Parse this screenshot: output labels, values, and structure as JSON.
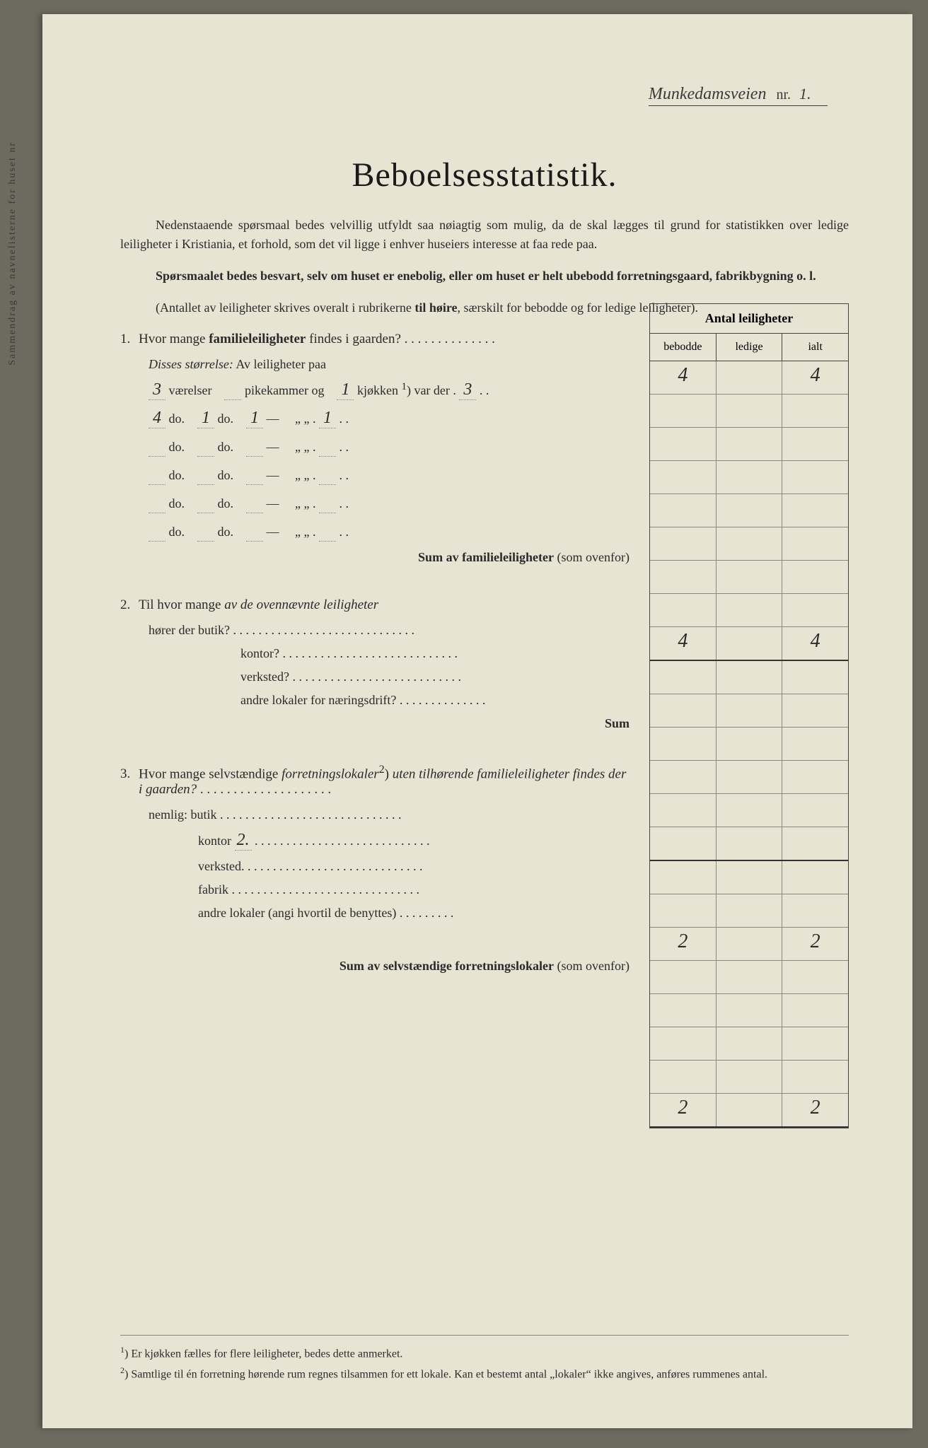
{
  "street": {
    "name": "Munkedamsveien",
    "nr_label": "nr.",
    "nr_value": "1."
  },
  "title": "Beboelsesstatistik.",
  "intro": {
    "p1a": "Nedenstaaende spørsmaal bedes velvillig utfyldt saa nøiagtig som mulig, da de skal lægges til grund for statistikken over ledige leiligheter i Kristiania, et forhold, som det vil ligge i enhver huseiers interesse at faa rede paa.",
    "p2": "Spørsmaalet bedes besvart, selv om huset er enebolig, eller om huset er helt ubebodd forretningsgaard, fabrikbygning o. l.",
    "p3a": "(Antallet av leiligheter skrives overalt i rubrikerne ",
    "p3b": "til høire",
    "p3c": ", særskilt for bebodde og for ledige leiligheter)."
  },
  "table_header": {
    "title": "Antal leiligheter",
    "col1": "bebodde",
    "col2": "ledige",
    "col3": "ialt"
  },
  "q1": {
    "num": "1.",
    "text_a": "Hvor mange ",
    "text_b": "familieleiligheter",
    "text_c": " findes i gaarden?",
    "bebodde": "4",
    "ledige": "",
    "ialt": "4",
    "disses": "Disses størrelse:",
    "av_leil": " Av leiligheter paa"
  },
  "room_rows": [
    {
      "vaer": "3",
      "pike": "",
      "kj": "1",
      "der": "3"
    },
    {
      "vaer": "4",
      "pike": "1",
      "kj": "1",
      "der": "1"
    },
    {
      "vaer": "",
      "pike": "",
      "kj": "",
      "der": ""
    },
    {
      "vaer": "",
      "pike": "",
      "kj": "",
      "der": ""
    },
    {
      "vaer": "",
      "pike": "",
      "kj": "",
      "der": ""
    },
    {
      "vaer": "",
      "pike": "",
      "kj": "",
      "der": ""
    }
  ],
  "room_labels": {
    "vaerelser": "værelser",
    "do": "do.",
    "pikekammer": "pikekammer og",
    "kjokken": "kjøkken",
    "var_der": ") var der .",
    "dash": "—",
    "quote": "„      „"
  },
  "sum1": {
    "label": "Sum av familieleiligheter",
    "paren": "(som ovenfor)",
    "bebodde": "4",
    "ledige": "",
    "ialt": "4"
  },
  "q2": {
    "num": "2.",
    "text_a": "Til hvor mange ",
    "text_b": "av de ovennævnte leiligheter",
    "horer": "hører der butik?",
    "kontor": "kontor?",
    "verksted": "verksted?",
    "andre": "andre lokaler for næringsdrift?",
    "sum": "Sum"
  },
  "q3": {
    "num": "3.",
    "text_a": "Hvor mange selvstændige ",
    "text_b": "forretningslokaler",
    "text_c": ") ",
    "text_d": "uten tilhørende familieleiligheter findes der i gaarden?",
    "nemlig": "nemlig: butik .",
    "kontor": "kontor",
    "kontor_val": "2.",
    "kontor_bebodde": "2",
    "kontor_ialt": "2",
    "verksted": "verksted.",
    "fabrik": "fabrik .",
    "andre": "andre lokaler (angi hvortil de benyttes)"
  },
  "sum3": {
    "label": "Sum av selvstændige forretningslokaler",
    "paren": "(som ovenfor)",
    "bebodde": "2",
    "ledige": "",
    "ialt": "2"
  },
  "footnotes": {
    "f1": "Er kjøkken fælles for flere leiligheter, bedes dette anmerket.",
    "f2": "Samtlige til én forretning hørende rum regnes tilsammen for ett lokale.  Kan et bestemt antal „lokaler“ ikke angives, anføres rummenes antal."
  },
  "colors": {
    "paper": "#e8e4d4",
    "bg": "#6b6b5f",
    "ink": "#2a2a2a"
  }
}
